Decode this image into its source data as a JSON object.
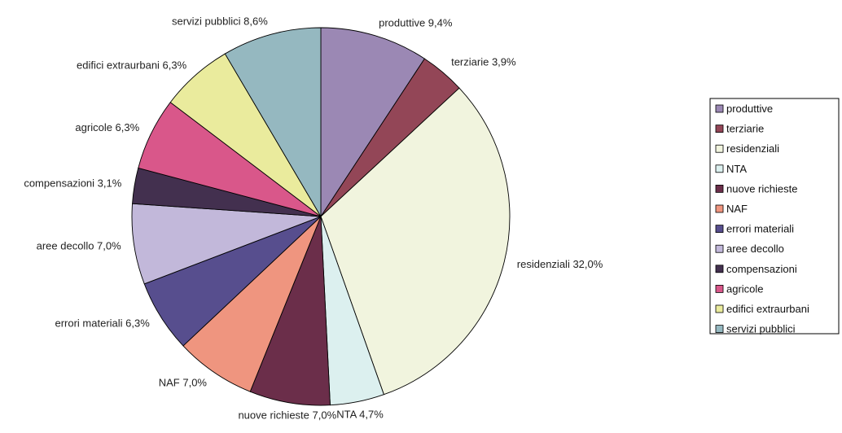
{
  "chart_data": {
    "type": "pie",
    "legend_position": "right",
    "title": "",
    "slices": [
      {
        "name": "produttive",
        "value": 9.4,
        "label": "produttive 9,4%",
        "color": "#9b88b4"
      },
      {
        "name": "terziarie",
        "value": 3.9,
        "label": "terziarie 3,9%",
        "color": "#934657"
      },
      {
        "name": "residenziali",
        "value": 32.0,
        "label": "residenziali 32,0%",
        "color": "#f1f4de"
      },
      {
        "name": "NTA",
        "value": 4.7,
        "label": "NTA 4,7%",
        "color": "#dcf0ef"
      },
      {
        "name": "nuove richieste",
        "value": 7.0,
        "label": "nuove richieste 7,0%",
        "color": "#6b2e4a"
      },
      {
        "name": "NAF",
        "value": 7.0,
        "label": "NAF 7,0%",
        "color": "#ef957f"
      },
      {
        "name": "errori materiali",
        "value": 6.3,
        "label": "errori materiali 6,3%",
        "color": "#574e8e"
      },
      {
        "name": "aree decollo",
        "value": 7.0,
        "label": "aree decollo 7,0%",
        "color": "#c2b8da"
      },
      {
        "name": "compensazioni",
        "value": 3.1,
        "label": "compensazioni 3,1%",
        "color": "#43304f"
      },
      {
        "name": "agricole",
        "value": 6.3,
        "label": "agricole 6,3%",
        "color": "#d9578a"
      },
      {
        "name": "edifici extraurbani",
        "value": 6.3,
        "label": "edifici extraurbani 6,3%",
        "color": "#eaeb9d"
      },
      {
        "name": "servizi pubblici",
        "value": 8.6,
        "label": "servizi pubblici 8,6%",
        "color": "#95b8c0"
      }
    ]
  }
}
